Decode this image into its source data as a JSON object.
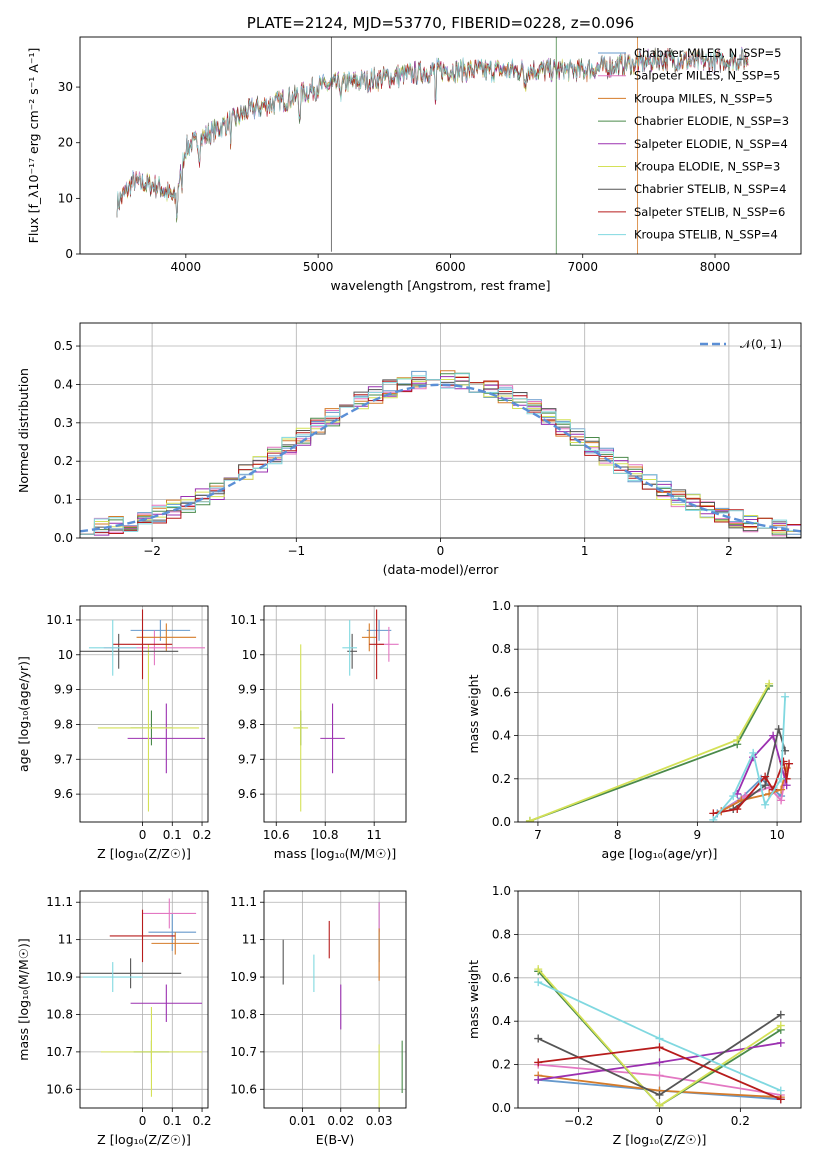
{
  "figure_title": "PLATE=2124, MJD=53770, FIBERID=0228, z=0.096",
  "chart_data": [
    {
      "type": "line",
      "id": "spectrum",
      "title": "PLATE=2124, MJD=53770, FIBERID=0228, z=0.096",
      "xlabel": "wavelength [Angstrom, rest frame]",
      "ylabel": "Flux [f_λ10⁻¹⁷ erg cm⁻² s⁻¹ A⁻¹]",
      "xlim": [
        3200,
        8650
      ],
      "ylim": [
        0,
        39
      ],
      "xticks": [
        4000,
        5000,
        6000,
        7000,
        8000
      ],
      "yticks": [
        0,
        10,
        20,
        30
      ],
      "legend_loc": "upper-right",
      "grid": false,
      "continuum": {
        "x": [
          3480,
          3600,
          3800,
          3920,
          4000,
          4200,
          4500,
          4800,
          5000,
          5300,
          5600,
          5900,
          6200,
          6600,
          7000,
          7300,
          7600,
          7900,
          8250
        ],
        "y": [
          9,
          13,
          12,
          10,
          19,
          22,
          26,
          28,
          30,
          31,
          32,
          33,
          33,
          33,
          33,
          34,
          35,
          34.5,
          35
        ]
      },
      "series": [
        {
          "name": "Chabrier MILES, N_SSP=5",
          "color": "#6699cc"
        },
        {
          "name": "Salpeter MILES, N_SSP=5",
          "color": "#e377c2"
        },
        {
          "name": "Kroupa MILES, N_SSP=5",
          "color": "#d57b2a"
        },
        {
          "name": "Chabrier ELODIE, N_SSP=3",
          "color": "#4a8a4a"
        },
        {
          "name": "Salpeter ELODIE, N_SSP=4",
          "color": "#9b30b0"
        },
        {
          "name": "Kroupa ELODIE, N_SSP=3",
          "color": "#d4e157"
        },
        {
          "name": "Chabrier STELIB, N_SSP=4",
          "color": "#555555"
        },
        {
          "name": "Salpeter STELIB, N_SSP=6",
          "color": "#b71c1c"
        },
        {
          "name": "Kroupa STELIB, N_SSP=4",
          "color": "#80d8e0"
        }
      ]
    },
    {
      "type": "bar",
      "id": "residuals",
      "xlabel": "(data-model)/error",
      "ylabel": "Normed distribution",
      "xlim": [
        -2.5,
        2.5
      ],
      "ylim": [
        0,
        0.56
      ],
      "xticks": [
        -2,
        -1,
        0,
        1,
        2
      ],
      "yticks": [
        0.0,
        0.1,
        0.2,
        0.3,
        0.4,
        0.5
      ],
      "grid": true,
      "legend": "𝒩(0, 1)",
      "legend_loc": "upper-right",
      "bin_width": 0.1,
      "bin_start": -2.5
    },
    {
      "type": "scatter",
      "id": "age_vs_Z",
      "xlabel": "Z [log₁₀(Z/Z☉)]",
      "ylabel": "age  [log₁₀(age/yr)]",
      "xlim": [
        -0.21,
        0.22
      ],
      "ylim": [
        9.52,
        10.14
      ],
      "xticks": [
        0.0,
        0.1,
        0.2
      ],
      "yticks": [
        9.6,
        9.7,
        9.8,
        9.9,
        10.0,
        10.1
      ],
      "grid": true,
      "points": [
        {
          "x": 0.06,
          "xerr": 0.1,
          "y": 10.07,
          "yerr": 0.03,
          "color": "#6699cc"
        },
        {
          "x": 0.04,
          "xerr": 0.17,
          "y": 10.02,
          "yerr": 0.05,
          "color": "#e377c2"
        },
        {
          "x": 0.08,
          "xerr": 0.1,
          "y": 10.05,
          "yerr": 0.04,
          "color": "#d57b2a"
        },
        {
          "x": 0.03,
          "xerr": 0.07,
          "y": 9.79,
          "yerr": 0.05,
          "color": "#4a8a4a"
        },
        {
          "x": 0.08,
          "xerr": 0.13,
          "y": 9.76,
          "yerr": 0.1,
          "color": "#9b30b0"
        },
        {
          "x": 0.02,
          "xerr": 0.17,
          "y": 9.79,
          "yerr": 0.24,
          "color": "#d4e157"
        },
        {
          "x": -0.08,
          "xerr": 0.2,
          "y": 10.01,
          "yerr": 0.05,
          "color": "#555555"
        },
        {
          "x": 0.0,
          "xerr": 0.1,
          "y": 10.03,
          "yerr": 0.1,
          "color": "#b71c1c"
        },
        {
          "x": -0.1,
          "xerr": 0.08,
          "y": 10.02,
          "yerr": 0.08,
          "color": "#80d8e0"
        }
      ]
    },
    {
      "type": "scatter",
      "id": "age_vs_mass",
      "xlabel": "mass [log₁₀(M/M☉)]",
      "ylabel": "",
      "xlim": [
        10.55,
        11.13
      ],
      "ylim": [
        9.52,
        10.14
      ],
      "xticks": [
        10.6,
        10.8,
        11.0
      ],
      "yticks": [
        9.6,
        9.7,
        9.8,
        9.9,
        10.0,
        10.1
      ],
      "grid": true,
      "points": [
        {
          "x": 11.02,
          "xerr": 0.05,
          "y": 10.07,
          "yerr": 0.03,
          "color": "#6699cc"
        },
        {
          "x": 11.06,
          "xerr": 0.04,
          "y": 10.03,
          "yerr": 0.05,
          "color": "#e377c2"
        },
        {
          "x": 10.98,
          "xerr": 0.03,
          "y": 10.05,
          "yerr": 0.04,
          "color": "#d57b2a"
        },
        {
          "x": 10.7,
          "xerr": 0.01,
          "y": 9.79,
          "yerr": 0.05,
          "color": "#4a8a4a"
        },
        {
          "x": 10.83,
          "xerr": 0.05,
          "y": 9.76,
          "yerr": 0.1,
          "color": "#9b30b0"
        },
        {
          "x": 10.7,
          "xerr": 0.03,
          "y": 9.79,
          "yerr": 0.24,
          "color": "#d4e157"
        },
        {
          "x": 10.91,
          "xerr": 0.02,
          "y": 10.01,
          "yerr": 0.05,
          "color": "#555555"
        },
        {
          "x": 11.01,
          "xerr": 0.03,
          "y": 10.03,
          "yerr": 0.1,
          "color": "#b71c1c"
        },
        {
          "x": 10.9,
          "xerr": 0.03,
          "y": 10.02,
          "yerr": 0.08,
          "color": "#80d8e0"
        }
      ]
    },
    {
      "type": "line",
      "id": "weight_vs_age",
      "xlabel": "age  [log₁₀(age/yr)]",
      "ylabel": "mass weight",
      "xlim": [
        6.75,
        10.3
      ],
      "ylim": [
        0,
        1
      ],
      "xticks": [
        7,
        8,
        9,
        10
      ],
      "yticks": [
        0.0,
        0.2,
        0.4,
        0.6,
        0.8,
        1.0
      ],
      "grid": true,
      "series": [
        {
          "color": "#6699cc",
          "x": [
            9.25,
            9.55,
            9.8,
            10.05
          ],
          "y": [
            0.04,
            0.11,
            0.2,
            0.12
          ]
        },
        {
          "color": "#e377c2",
          "x": [
            9.3,
            9.6,
            9.9,
            10.05,
            10.1
          ],
          "y": [
            0.05,
            0.12,
            0.16,
            0.1,
            0.2
          ]
        },
        {
          "color": "#d57b2a",
          "x": [
            9.3,
            9.55,
            9.9,
            10.05,
            10.12
          ],
          "y": [
            0.05,
            0.1,
            0.13,
            0.15,
            0.25
          ]
        },
        {
          "color": "#4a8a4a",
          "x": [
            6.9,
            9.5,
            9.9
          ],
          "y": [
            0.005,
            0.36,
            0.63
          ]
        },
        {
          "color": "#9b30b0",
          "x": [
            9.5,
            9.7,
            9.95,
            10.12
          ],
          "y": [
            0.13,
            0.3,
            0.4,
            0.17
          ]
        },
        {
          "color": "#d4e157",
          "x": [
            6.9,
            9.5,
            9.9
          ],
          "y": [
            0.005,
            0.38,
            0.64
          ]
        },
        {
          "color": "#555555",
          "x": [
            9.45,
            9.85,
            10.02,
            10.1
          ],
          "y": [
            0.06,
            0.17,
            0.43,
            0.33
          ]
        },
        {
          "color": "#b71c1c",
          "x": [
            9.2,
            9.5,
            9.85,
            9.95,
            10.08,
            10.12,
            10.15
          ],
          "y": [
            0.04,
            0.06,
            0.21,
            0.15,
            0.28,
            0.2,
            0.27
          ]
        },
        {
          "color": "#80d8e0",
          "x": [
            9.2,
            9.45,
            9.7,
            9.85,
            10.05,
            10.1
          ],
          "y": [
            0.01,
            0.12,
            0.32,
            0.08,
            0.2,
            0.58
          ]
        }
      ]
    },
    {
      "type": "scatter",
      "id": "mass_vs_Z",
      "xlabel": "Z [log₁₀(Z/Z☉)]",
      "ylabel": "mass [log₁₀(M/M☉)]",
      "xlim": [
        -0.21,
        0.22
      ],
      "ylim": [
        10.55,
        11.13
      ],
      "xticks": [
        0.0,
        0.1,
        0.2
      ],
      "yticks": [
        10.6,
        10.7,
        10.8,
        10.9,
        11.0,
        11.1
      ],
      "grid": true,
      "points": [
        {
          "x": 0.1,
          "xerr": 0.08,
          "y": 11.02,
          "yerr": 0.05,
          "color": "#6699cc"
        },
        {
          "x": 0.09,
          "xerr": 0.09,
          "y": 11.07,
          "yerr": 0.04,
          "color": "#e377c2"
        },
        {
          "x": 0.11,
          "xerr": 0.08,
          "y": 10.99,
          "yerr": 0.03,
          "color": "#d57b2a"
        },
        {
          "x": 0.03,
          "xerr": 0.06,
          "y": 10.7,
          "yerr": 0.03,
          "color": "#4a8a4a"
        },
        {
          "x": 0.08,
          "xerr": 0.12,
          "y": 10.83,
          "yerr": 0.05,
          "color": "#9b30b0"
        },
        {
          "x": 0.03,
          "xerr": 0.17,
          "y": 10.7,
          "yerr": 0.12,
          "color": "#d4e157"
        },
        {
          "x": -0.04,
          "xerr": 0.17,
          "y": 10.91,
          "yerr": 0.04,
          "color": "#555555"
        },
        {
          "x": 0.0,
          "xerr": 0.11,
          "y": 11.01,
          "yerr": 0.07,
          "color": "#b71c1c"
        },
        {
          "x": -0.1,
          "xerr": 0.1,
          "y": 10.9,
          "yerr": 0.04,
          "color": "#80d8e0"
        }
      ]
    },
    {
      "type": "scatter",
      "id": "mass_vs_ebv",
      "xlabel": "E(B-V)",
      "ylabel": "",
      "xlim": [
        0.0,
        0.037
      ],
      "ylim": [
        10.55,
        11.13
      ],
      "xticks": [
        0.01,
        0.02,
        0.03
      ],
      "yticks": [
        10.6,
        10.7,
        10.8,
        10.9,
        11.0,
        11.1
      ],
      "grid": true,
      "points": [
        {
          "x": 0.03,
          "y": 11.02,
          "yerr": 0.08,
          "color": "#6699cc"
        },
        {
          "x": 0.03,
          "y": 11.06,
          "yerr": 0.04,
          "color": "#e377c2"
        },
        {
          "x": 0.03,
          "y": 10.96,
          "yerr": 0.07,
          "color": "#d57b2a"
        },
        {
          "x": 0.036,
          "y": 10.66,
          "yerr": 0.07,
          "color": "#4a8a4a"
        },
        {
          "x": 0.02,
          "y": 10.82,
          "yerr": 0.06,
          "color": "#9b30b0"
        },
        {
          "x": 0.03,
          "y": 10.62,
          "yerr": 0.1,
          "color": "#d4e157"
        },
        {
          "x": 0.005,
          "y": 10.94,
          "yerr": 0.06,
          "color": "#555555"
        },
        {
          "x": 0.017,
          "y": 11.0,
          "yerr": 0.05,
          "color": "#b71c1c"
        },
        {
          "x": 0.013,
          "y": 10.91,
          "yerr": 0.05,
          "color": "#80d8e0"
        }
      ]
    },
    {
      "type": "line",
      "id": "weight_vs_Z",
      "xlabel": "Z [log₁₀(Z/Z☉)]",
      "ylabel": "mass weight",
      "xlim": [
        -0.35,
        0.35
      ],
      "ylim": [
        0,
        1
      ],
      "xticks": [
        -0.2,
        0.0,
        0.2
      ],
      "yticks": [
        0.0,
        0.2,
        0.4,
        0.6,
        0.8,
        1.0
      ],
      "grid": true,
      "series": [
        {
          "color": "#6699cc",
          "x": [
            -0.3,
            0.0,
            0.3
          ],
          "y": [
            0.13,
            0.08,
            0.04
          ]
        },
        {
          "color": "#e377c2",
          "x": [
            -0.3,
            0.0,
            0.3
          ],
          "y": [
            0.2,
            0.15,
            0.06
          ]
        },
        {
          "color": "#d57b2a",
          "x": [
            -0.3,
            0.0,
            0.3
          ],
          "y": [
            0.15,
            0.08,
            0.05
          ]
        },
        {
          "color": "#4a8a4a",
          "x": [
            -0.3,
            0.0,
            0.3
          ],
          "y": [
            0.63,
            0.01,
            0.36
          ]
        },
        {
          "color": "#9b30b0",
          "x": [
            -0.3,
            0.0,
            0.3
          ],
          "y": [
            0.13,
            0.21,
            0.3
          ]
        },
        {
          "color": "#d4e157",
          "x": [
            -0.3,
            0.0,
            0.3
          ],
          "y": [
            0.64,
            0.01,
            0.38
          ]
        },
        {
          "color": "#555555",
          "x": [
            -0.3,
            0.0,
            0.3
          ],
          "y": [
            0.32,
            0.06,
            0.43
          ]
        },
        {
          "color": "#b71c1c",
          "x": [
            -0.3,
            0.0,
            0.3
          ],
          "y": [
            0.21,
            0.28,
            0.04
          ]
        },
        {
          "color": "#80d8e0",
          "x": [
            -0.3,
            0.0,
            0.3
          ],
          "y": [
            0.58,
            0.32,
            0.08
          ]
        }
      ]
    }
  ]
}
